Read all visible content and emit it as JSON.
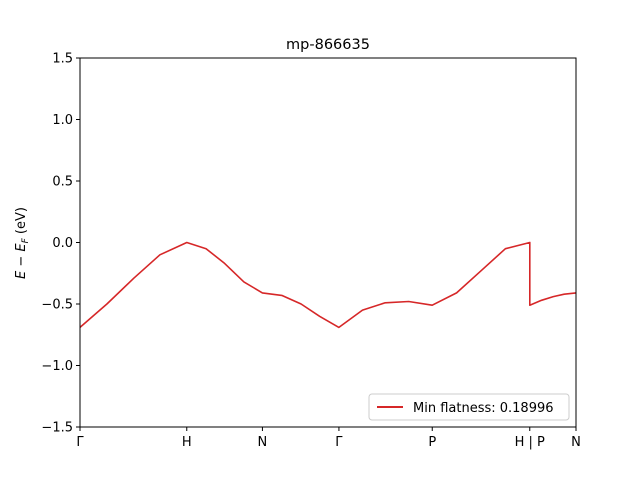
{
  "chart_data": {
    "type": "line",
    "title": "mp-866635",
    "xlabel": "",
    "ylabel_main": "E − E",
    "ylabel_sub": "F",
    "ylabel_unit": " (eV)",
    "ylim": [
      -1.5,
      1.5
    ],
    "yticks": [
      {
        "value": -1.5,
        "label": "−1.5"
      },
      {
        "value": -1.0,
        "label": "−1.0"
      },
      {
        "value": -0.5,
        "label": "−0.5"
      },
      {
        "value": 0.0,
        "label": "0.0"
      },
      {
        "value": 0.5,
        "label": "0.5"
      },
      {
        "value": 1.0,
        "label": "1.0"
      },
      {
        "value": 1.5,
        "label": "1.5"
      }
    ],
    "xlim": [
      0,
      5.9
    ],
    "xticks": [
      {
        "value": 0.0,
        "label": "Γ"
      },
      {
        "value": 1.27,
        "label": "H"
      },
      {
        "value": 2.17,
        "label": "N"
      },
      {
        "value": 3.08,
        "label": "Γ"
      },
      {
        "value": 4.19,
        "label": "P"
      },
      {
        "value": 5.35,
        "label": "H | P"
      },
      {
        "value": 5.9,
        "label": "N"
      }
    ],
    "grid": false,
    "legend_position": "lower-right",
    "series": [
      {
        "name": "Min flatness: 0.18996",
        "color": "#d62728",
        "x": [
          0.0,
          0.32,
          0.64,
          0.95,
          1.27,
          1.5,
          1.72,
          1.95,
          2.17,
          2.4,
          2.63,
          2.85,
          3.08,
          3.36,
          3.63,
          3.91,
          4.19,
          4.48,
          4.77,
          5.06,
          5.35,
          5.35,
          5.49,
          5.63,
          5.76,
          5.9
        ],
        "y": [
          -0.69,
          -0.5,
          -0.29,
          -0.1,
          0.0,
          -0.05,
          -0.17,
          -0.32,
          -0.41,
          -0.43,
          -0.5,
          -0.6,
          -0.69,
          -0.55,
          -0.49,
          -0.48,
          -0.51,
          -0.41,
          -0.23,
          -0.05,
          0.0,
          -0.51,
          -0.47,
          -0.44,
          -0.42,
          -0.41
        ]
      }
    ]
  }
}
